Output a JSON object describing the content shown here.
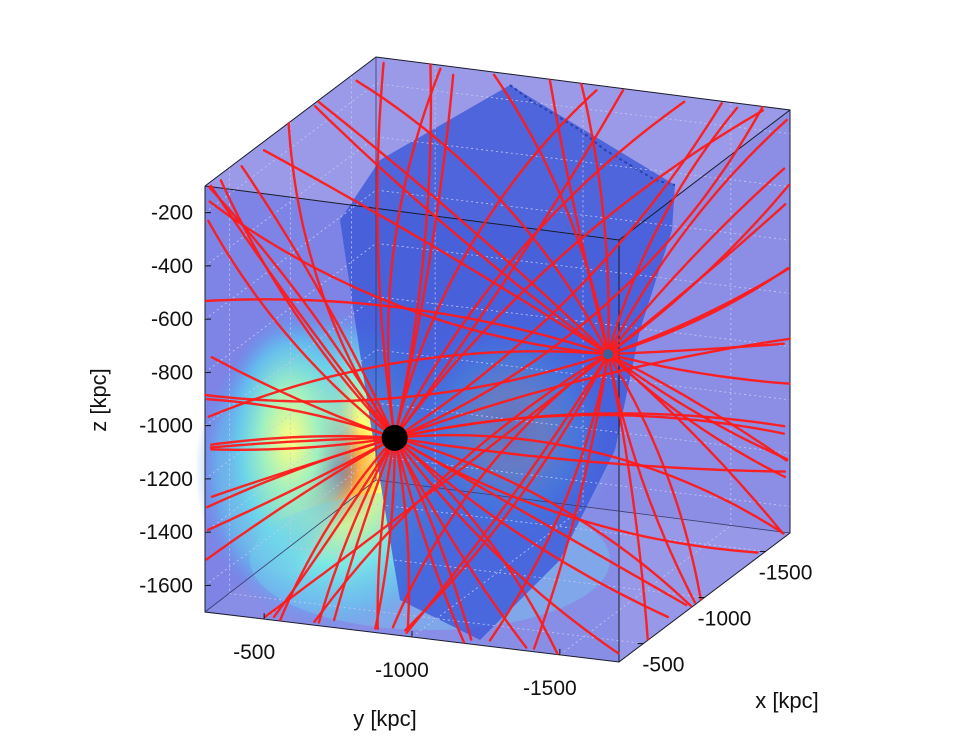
{
  "chart_data": {
    "type": "3d-volume-streamlines",
    "title": "",
    "xlabel": "x [kpc]",
    "ylabel": "y [kpc]",
    "zlabel": "z [kpc]",
    "x_ticks": [
      "-500",
      "-1000",
      "-1500"
    ],
    "y_ticks": [
      "-500",
      "-1000",
      "-1500"
    ],
    "z_ticks": [
      "-200",
      "-400",
      "-600",
      "-800",
      "-1000",
      "-1200",
      "-1400",
      "-1600"
    ],
    "xlim": [
      -1700,
      -300
    ],
    "ylim": [
      -1700,
      -300
    ],
    "zlim": [
      -1700,
      -100
    ],
    "grid": true,
    "legend": "none",
    "field_lines_color": "#ff1a1a",
    "point_masses": [
      {
        "x": -400,
        "y": -900,
        "z": -1000,
        "marker_color": "#000000"
      },
      {
        "x": -1300,
        "y": -1250,
        "z": -950,
        "marker_color": "#3a5f9a"
      }
    ],
    "colormap": "jet",
    "background_color": "#8080e0"
  }
}
